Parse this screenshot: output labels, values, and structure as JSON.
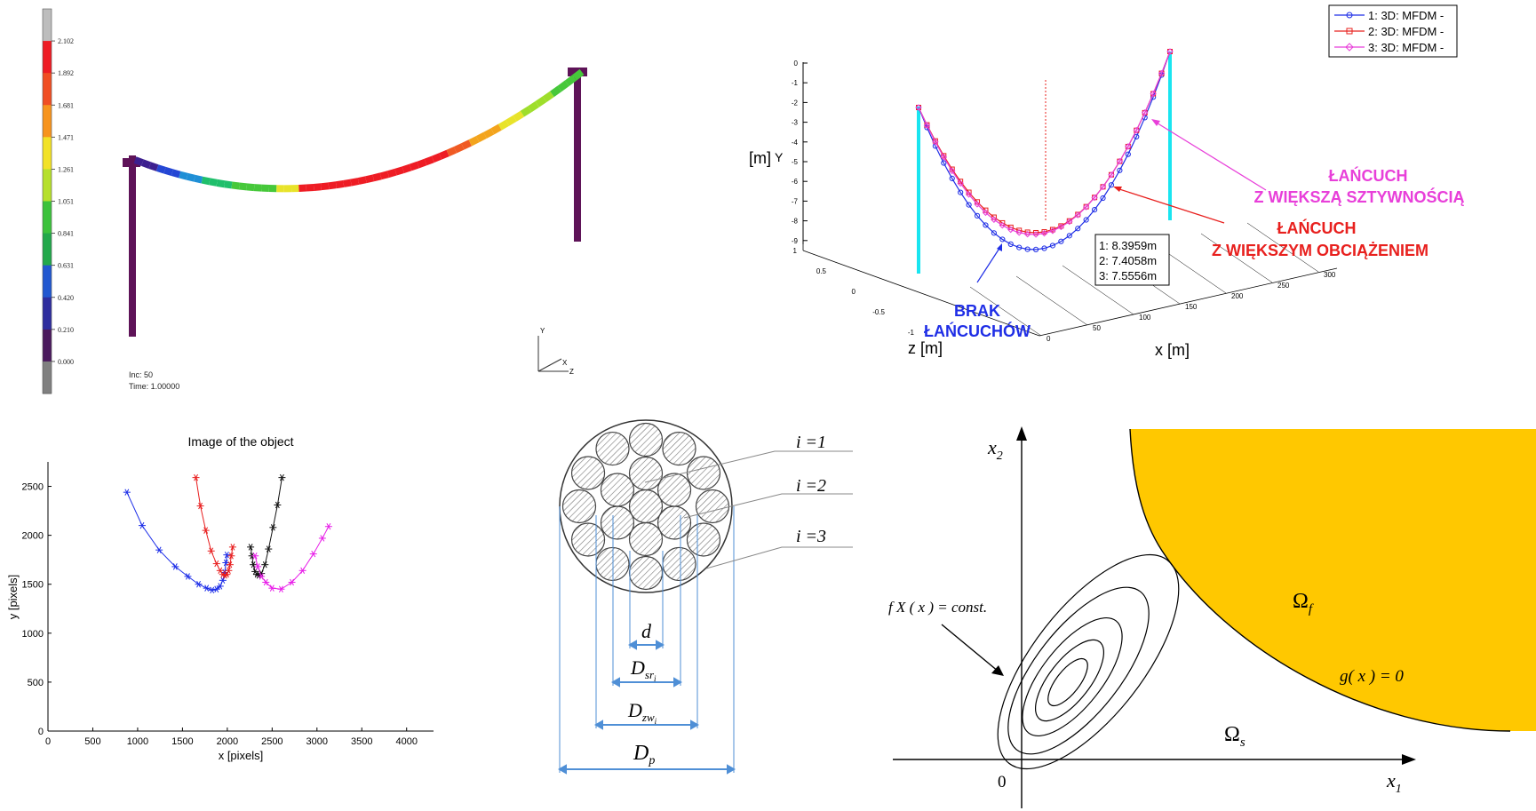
{
  "fea": {
    "scale_values": [
      "2.102",
      "1.892",
      "1.681",
      "1.471",
      "1.261",
      "1.051",
      "0.841",
      "0.631",
      "0.420",
      "0.210",
      "0.000"
    ],
    "scale_colors": [
      "#bdbdbd",
      "#ee1c24",
      "#f04e23",
      "#f7941d",
      "#f2e227",
      "#b6e02c",
      "#3cc23c",
      "#22a84b",
      "#2157d0",
      "#2e2d9e",
      "#4b1a5e",
      "#808080"
    ],
    "inc_label": "Inc:  50",
    "time_label": "Time:  1.00000",
    "axes_y": "Y",
    "axes_x": "X",
    "axes_z": "Z"
  },
  "chain3d": {
    "legend": [
      "1: 3D:  MFDM -",
      "2: 3D:  MFDM -",
      "3: 3D:  MFDM -"
    ],
    "series_colors": [
      "#1f2ee6",
      "#e8201e",
      "#e83fd9"
    ],
    "y_ticks": [
      "0",
      "-1",
      "-2",
      "-3",
      "-4",
      "-5",
      "-6",
      "-7",
      "-8",
      "-9"
    ],
    "z_ticks": [
      "1",
      "0.5",
      "0",
      "-0.5",
      "-1"
    ],
    "x_ticks": [
      "0",
      "50",
      "100",
      "150",
      "200",
      "250",
      "300"
    ],
    "ylabel": "[m]",
    "ylabel_axis": "Y",
    "zlabel": "z [m]",
    "xlabel": "x [m]",
    "box_lines": [
      "1: 8.3959m",
      "2: 7.4058m",
      "3: 7.5556m"
    ],
    "ann_blue_1": "BRAK",
    "ann_blue_2": "ŁAŃCUCHÓW",
    "ann_pink_1": "ŁAŃCUCH",
    "ann_pink_2": "Z WIĘKSZĄ SZTYWNOŚCIĄ",
    "ann_red_1": "ŁAŃCUCH",
    "ann_red_2": "Z WIĘKSZYM OBCIĄŻENIEM"
  },
  "chart_data": {
    "type": "line",
    "title": "Image of the object",
    "xlabel": "x [pixels]",
    "ylabel": "y [pixels]",
    "xlim": [
      0,
      4300
    ],
    "ylim": [
      0,
      2750
    ],
    "x_ticks": [
      "0",
      "500",
      "1000",
      "1500",
      "2000",
      "2500",
      "3000",
      "3500",
      "4000"
    ],
    "y_ticks": [
      "0",
      "500",
      "1000",
      "1500",
      "2000",
      "2500"
    ],
    "series": [
      {
        "color": "#1c2de8",
        "x": [
          880,
          1050,
          1240,
          1420,
          1560,
          1680,
          1770,
          1830,
          1880,
          1920,
          1950,
          1970,
          1985,
          1995
        ],
        "y": [
          2440,
          2100,
          1850,
          1680,
          1580,
          1500,
          1460,
          1440,
          1450,
          1480,
          1540,
          1620,
          1720,
          1800
        ]
      },
      {
        "color": "#e81c1c",
        "x": [
          1650,
          1700,
          1760,
          1820,
          1880,
          1920,
          1950,
          1975,
          1995,
          2015,
          2030,
          2045,
          2060
        ],
        "y": [
          2590,
          2300,
          2050,
          1840,
          1710,
          1640,
          1600,
          1590,
          1600,
          1640,
          1700,
          1790,
          1880
        ]
      },
      {
        "color": "#111111",
        "x": [
          2260,
          2275,
          2290,
          2310,
          2330,
          2350,
          2380,
          2420,
          2460,
          2510,
          2560,
          2610
        ],
        "y": [
          1880,
          1790,
          1700,
          1630,
          1600,
          1590,
          1610,
          1700,
          1860,
          2080,
          2310,
          2590
        ]
      },
      {
        "color": "#e81ce8",
        "x": [
          2310,
          2340,
          2380,
          2430,
          2500,
          2600,
          2720,
          2840,
          2960,
          3060,
          3130
        ],
        "y": [
          1790,
          1680,
          1580,
          1520,
          1460,
          1450,
          1520,
          1640,
          1810,
          1970,
          2090
        ]
      }
    ]
  },
  "cable": {
    "label_i1": "i =1",
    "label_i2": "i =2",
    "label_i3": "i =3",
    "dim_d": "d",
    "dim_dsr_main": "D",
    "dim_dsr_sub": "sr",
    "dim_dsr_idx": "i",
    "dim_dzw_main": "D",
    "dim_dzw_sub": "zw",
    "dim_dzw_idx": "i",
    "dim_dp_main": "D",
    "dim_dp_sub": "p"
  },
  "reliability": {
    "x2_main": "x",
    "x2_sub": "2",
    "x1_main": "x",
    "x1_sub": "1",
    "origin": "0",
    "omega_f_main": "Ω",
    "omega_f_sub": "f",
    "omega_s_main": "Ω",
    "omega_s_sub": "s",
    "g_label": "g( x ) = 0",
    "fx_label": "f X ( x ) =  const.",
    "failure_color": "#ffc800"
  }
}
